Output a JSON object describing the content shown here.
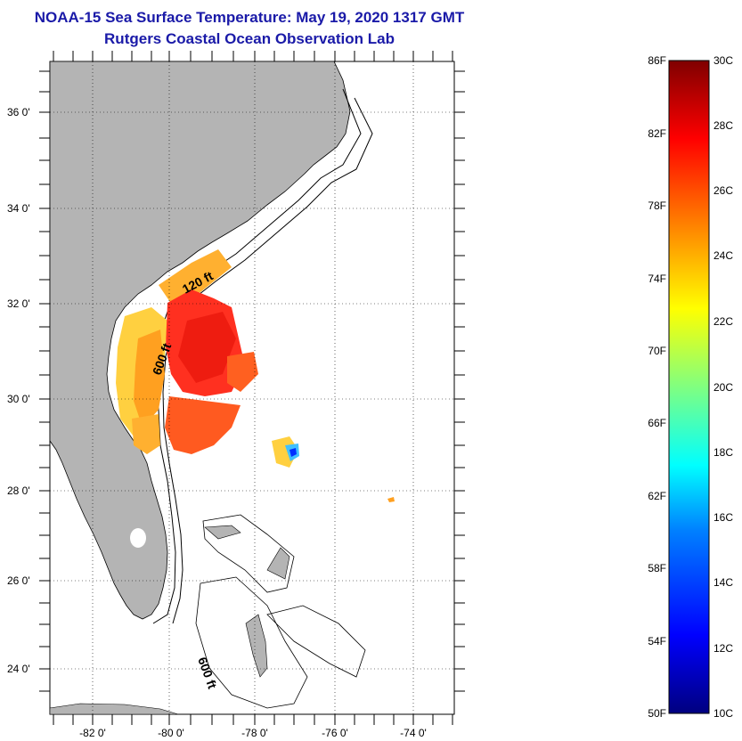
{
  "header": {
    "title": "NOAA-15 Sea Surface Temperature:  May 19, 2020 1317 GMT",
    "subtitle": "Rutgers Coastal Ocean Observation Lab"
  },
  "map": {
    "lat_labels": [
      "36 0'",
      "34 0'",
      "32 0'",
      "30 0'",
      "28 0'",
      "26 0'",
      "24 0'"
    ],
    "lon_labels": [
      "-82 0'",
      "-80 0'",
      "-78 0'",
      "-76 0'",
      "-74 0'"
    ],
    "contour_labels": [
      "120 ft",
      "600 ft",
      "600 ft"
    ],
    "land_color": "#b4b4b4",
    "water_color": "#ffffff"
  },
  "colorbar": {
    "fahrenheit_labels": [
      "86F",
      "82F",
      "78F",
      "74F",
      "70F",
      "66F",
      "62F",
      "58F",
      "54F",
      "50F"
    ],
    "celsius_labels": [
      "30C",
      "28C",
      "26C",
      "24C",
      "22C",
      "20C",
      "18C",
      "16C",
      "14C",
      "12C",
      "10C"
    ],
    "gradient": [
      "#00007f",
      "#0000ff",
      "#0080ff",
      "#00ffff",
      "#80ff80",
      "#ffff00",
      "#ff8000",
      "#ff0000",
      "#7f0000"
    ]
  }
}
